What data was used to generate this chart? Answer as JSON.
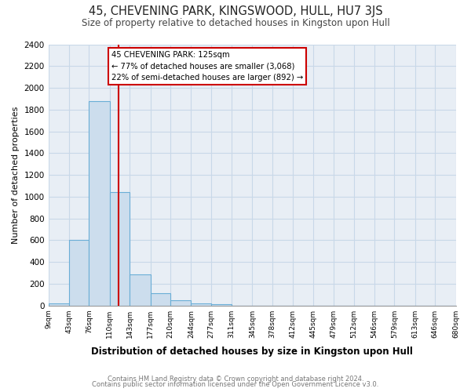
{
  "title": "45, CHEVENING PARK, KINGSWOOD, HULL, HU7 3JS",
  "subtitle": "Size of property relative to detached houses in Kingston upon Hull",
  "xlabel": "Distribution of detached houses by size in Kingston upon Hull",
  "ylabel": "Number of detached properties",
  "bar_edges": [
    9,
    43,
    76,
    110,
    143,
    177,
    210,
    244,
    277,
    311,
    345,
    378,
    412,
    445,
    479,
    512,
    546,
    579,
    613,
    646,
    680
  ],
  "bar_heights": [
    20,
    600,
    1880,
    1040,
    285,
    110,
    45,
    20,
    10,
    0,
    0,
    0,
    0,
    0,
    0,
    0,
    0,
    0,
    0,
    0
  ],
  "bar_color": "#ccdded",
  "bar_edge_color": "#6aaed6",
  "vline_x": 125,
  "vline_color": "#cc0000",
  "annotation_title": "45 CHEVENING PARK: 125sqm",
  "annotation_line1": "← 77% of detached houses are smaller (3,068)",
  "annotation_line2": "22% of semi-detached houses are larger (892) →",
  "ylim": [
    0,
    2400
  ],
  "yticks": [
    0,
    200,
    400,
    600,
    800,
    1000,
    1200,
    1400,
    1600,
    1800,
    2000,
    2200,
    2400
  ],
  "footer1": "Contains HM Land Registry data © Crown copyright and database right 2024.",
  "footer2": "Contains public sector information licensed under the Open Government Licence v3.0.",
  "fig_bg_color": "#ffffff",
  "plot_bg_color": "#e8eef5"
}
